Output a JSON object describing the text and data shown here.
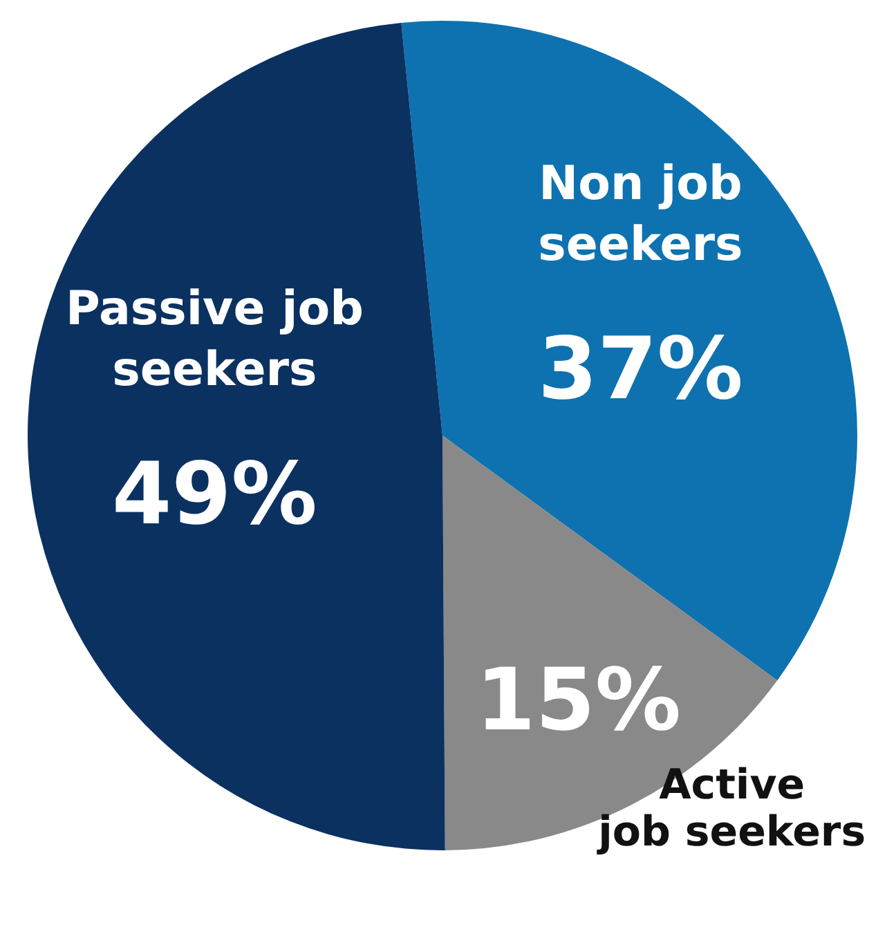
{
  "chart_data": {
    "type": "pie",
    "categories": [
      "Non job seekers",
      "Active job seekers",
      "Passive job seekers"
    ],
    "values": [
      37,
      15,
      49
    ],
    "value_labels": [
      "37%",
      "15%",
      "49%"
    ],
    "colors": [
      "#0e72b0",
      "#898989",
      "#0a3160"
    ],
    "legend": false
  }
}
